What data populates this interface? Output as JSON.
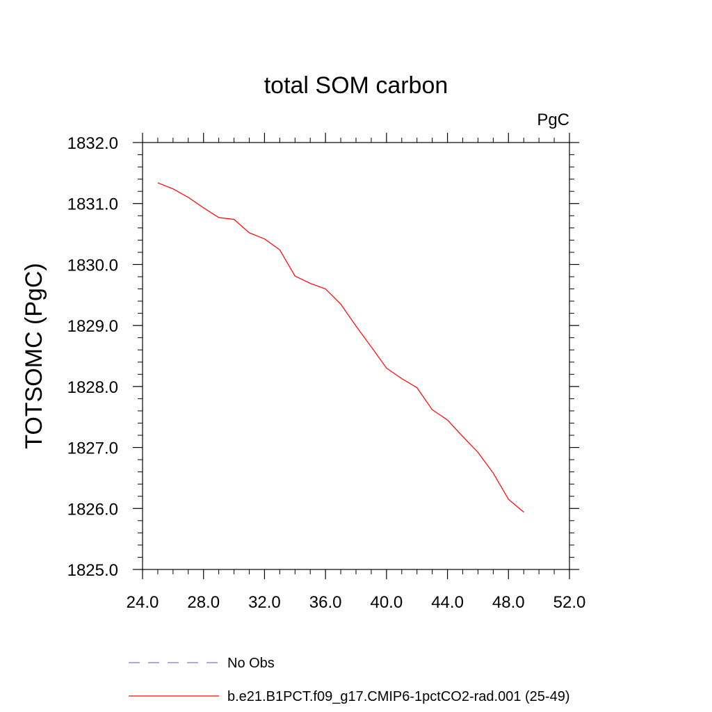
{
  "chart_data": {
    "type": "line",
    "title": "total SOM carbon",
    "units": "PgC",
    "ylabel": "TOTSOMC  (PgC)",
    "xlabel": "",
    "xlim": [
      24,
      52
    ],
    "ylim": [
      1825,
      1832
    ],
    "xticks": [
      24,
      28,
      32,
      36,
      40,
      44,
      48,
      52
    ],
    "xtick_labels": [
      "24.0",
      "28.0",
      "32.0",
      "36.0",
      "40.0",
      "44.0",
      "48.0",
      "52.0"
    ],
    "yticks": [
      1825,
      1826,
      1827,
      1828,
      1829,
      1830,
      1831,
      1832
    ],
    "ytick_labels": [
      "1825.0",
      "1826.0",
      "1827.0",
      "1828.0",
      "1829.0",
      "1830.0",
      "1831.0",
      "1832.0"
    ],
    "grid": false,
    "legend_position": "bottom",
    "series": [
      {
        "name": "No Obs",
        "color": "#7b78c8",
        "dash": "dashed",
        "x": [],
        "y": []
      },
      {
        "name": "b.e21.B1PCT.f09_g17.CMIP6-1pctCO2-rad.001 (25-49)",
        "color": "#ff0000",
        "dash": "solid",
        "x": [
          25,
          26,
          27,
          28,
          29,
          30,
          31,
          32,
          33,
          34,
          35,
          36,
          37,
          38,
          39,
          40,
          41,
          42,
          43,
          44,
          45,
          46,
          47,
          48,
          49
        ],
        "y": [
          1831.34,
          1831.24,
          1831.1,
          1830.93,
          1830.77,
          1830.74,
          1830.52,
          1830.42,
          1830.24,
          1829.81,
          1829.69,
          1829.6,
          1829.35,
          1828.99,
          1828.65,
          1828.3,
          1828.13,
          1827.98,
          1827.62,
          1827.45,
          1827.18,
          1826.92,
          1826.58,
          1826.15,
          1825.94
        ]
      }
    ]
  }
}
